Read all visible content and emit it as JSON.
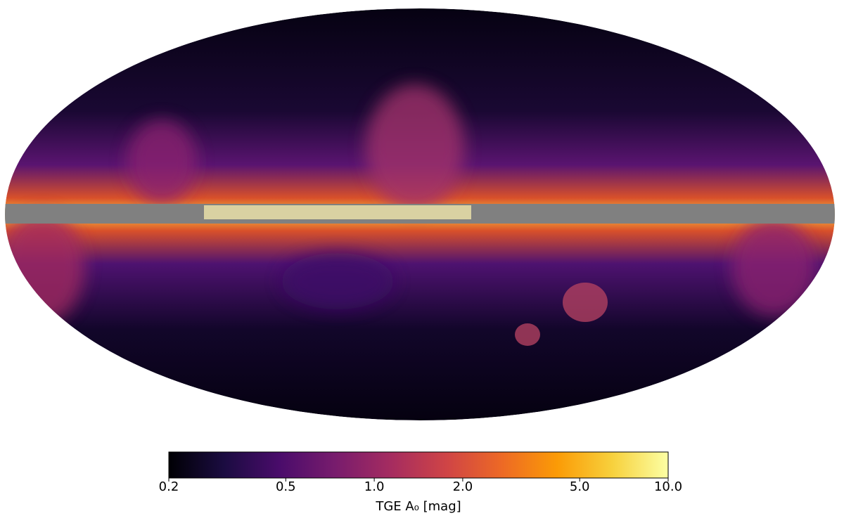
{
  "map": {
    "projection": "mollweide"
  },
  "colorbar": {
    "scale": "log",
    "lim": [
      0.2,
      10
    ],
    "ticks": [
      0.2,
      0.5,
      {
        "value": 1,
        "label": "1.0"
      },
      {
        "value": 2,
        "label": "2.0"
      },
      {
        "value": 5,
        "label": "5.0"
      },
      {
        "value": 10,
        "label": "10.0"
      }
    ],
    "label": "TGE A₀ [mag]",
    "colors": [
      "#000004",
      "#1b0c41",
      "#4a0c6b",
      "#781c6d",
      "#a52c60",
      "#cf4446",
      "#ed6925",
      "#fb9b06",
      "#f7d13d",
      "#fcffa4"
    ]
  }
}
